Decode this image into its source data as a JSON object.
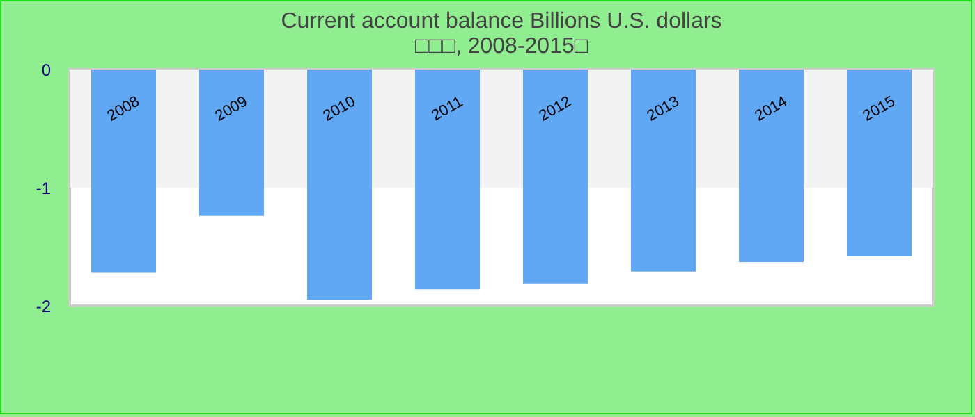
{
  "chart_data": {
    "type": "bar",
    "title": "Current account balance Billions U.S. dollars",
    "subtitle": "□□□, 2008-2015□",
    "categories": [
      "2008",
      "2009",
      "2010",
      "2011",
      "2012",
      "2013",
      "2014",
      "2015"
    ],
    "values": [
      -1.72,
      -1.24,
      -1.95,
      -1.86,
      -1.81,
      -1.71,
      -1.63,
      -1.58
    ],
    "color": "#60a8f4",
    "ylim": [
      -2,
      0
    ],
    "yticks": [
      -2,
      -1,
      0
    ],
    "bands": [
      {
        "axis": "y",
        "from": -1,
        "to": 0,
        "color": "#f3f3f3"
      }
    ]
  }
}
